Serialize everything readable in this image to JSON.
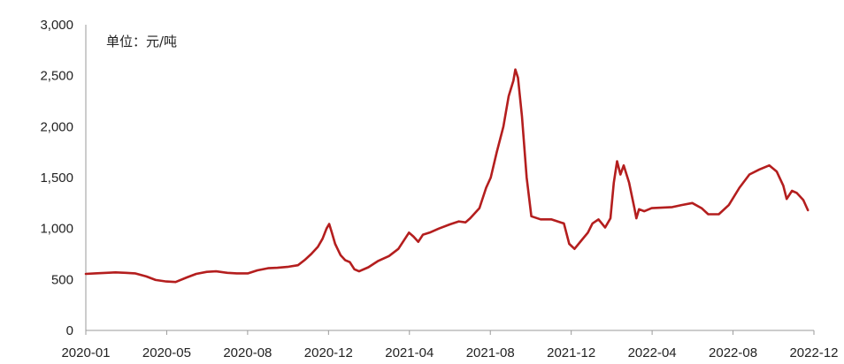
{
  "chart_data": {
    "type": "line",
    "title": "",
    "unit_label": "单位：元/吨",
    "xlabel": "",
    "ylabel": "",
    "ylim": [
      0,
      3000
    ],
    "y_ticks": [
      0,
      500,
      1000,
      1500,
      2000,
      2500,
      3000
    ],
    "y_tick_labels": [
      "0",
      "500",
      "1,000",
      "1,500",
      "2,000",
      "2,500",
      "3,000"
    ],
    "x_range": [
      "2020-01-01",
      "2022-12-31"
    ],
    "x_tick_labels": [
      "2020-01",
      "2020-05",
      "2020-08",
      "2020-12",
      "2021-04",
      "2021-08",
      "2021-12",
      "2022-04",
      "2022-08",
      "2022-12"
    ],
    "grid": false,
    "legend": "none",
    "colors": {
      "series": "#b41e1e",
      "axis": "#9a9a9a",
      "text": "#222222"
    },
    "series": [
      {
        "color": "#b41e1e",
        "points": [
          [
            "2020-01-01",
            555
          ],
          [
            "2020-01-15",
            560
          ],
          [
            "2020-02-01",
            565
          ],
          [
            "2020-02-15",
            570
          ],
          [
            "2020-03-01",
            565
          ],
          [
            "2020-03-15",
            560
          ],
          [
            "2020-04-01",
            530
          ],
          [
            "2020-04-15",
            495
          ],
          [
            "2020-05-01",
            480
          ],
          [
            "2020-05-15",
            475
          ],
          [
            "2020-06-01",
            520
          ],
          [
            "2020-06-15",
            555
          ],
          [
            "2020-07-01",
            575
          ],
          [
            "2020-07-15",
            580
          ],
          [
            "2020-08-01",
            565
          ],
          [
            "2020-08-15",
            560
          ],
          [
            "2020-09-01",
            560
          ],
          [
            "2020-09-15",
            590
          ],
          [
            "2020-10-01",
            610
          ],
          [
            "2020-10-15",
            615
          ],
          [
            "2020-11-01",
            625
          ],
          [
            "2020-11-15",
            640
          ],
          [
            "2020-11-25",
            690
          ],
          [
            "2020-12-05",
            750
          ],
          [
            "2020-12-15",
            820
          ],
          [
            "2020-12-22",
            900
          ],
          [
            "2020-12-28",
            1000
          ],
          [
            "2021-01-01",
            1045
          ],
          [
            "2021-01-05",
            960
          ],
          [
            "2021-01-10",
            850
          ],
          [
            "2021-01-18",
            740
          ],
          [
            "2021-01-25",
            690
          ],
          [
            "2021-02-01",
            670
          ],
          [
            "2021-02-08",
            600
          ],
          [
            "2021-02-15",
            580
          ],
          [
            "2021-03-01",
            620
          ],
          [
            "2021-03-15",
            680
          ],
          [
            "2021-04-01",
            730
          ],
          [
            "2021-04-15",
            800
          ],
          [
            "2021-04-25",
            900
          ],
          [
            "2021-05-01",
            960
          ],
          [
            "2021-05-08",
            920
          ],
          [
            "2021-05-15",
            870
          ],
          [
            "2021-05-22",
            940
          ],
          [
            "2021-06-01",
            960
          ],
          [
            "2021-06-15",
            1000
          ],
          [
            "2021-07-01",
            1040
          ],
          [
            "2021-07-15",
            1070
          ],
          [
            "2021-07-25",
            1060
          ],
          [
            "2021-08-01",
            1100
          ],
          [
            "2021-08-15",
            1200
          ],
          [
            "2021-08-25",
            1400
          ],
          [
            "2021-09-01",
            1500
          ],
          [
            "2021-09-10",
            1750
          ],
          [
            "2021-09-20",
            2000
          ],
          [
            "2021-09-28",
            2300
          ],
          [
            "2021-10-05",
            2450
          ],
          [
            "2021-10-08",
            2560
          ],
          [
            "2021-10-12",
            2480
          ],
          [
            "2021-10-18",
            2100
          ],
          [
            "2021-10-25",
            1500
          ],
          [
            "2021-11-01",
            1120
          ],
          [
            "2021-11-15",
            1090
          ],
          [
            "2021-12-01",
            1090
          ],
          [
            "2021-12-20",
            1050
          ],
          [
            "2021-12-28",
            850
          ],
          [
            "2022-01-05",
            800
          ],
          [
            "2022-01-15",
            880
          ],
          [
            "2022-01-25",
            960
          ],
          [
            "2022-02-01",
            1050
          ],
          [
            "2022-02-10",
            1090
          ],
          [
            "2022-02-20",
            1010
          ],
          [
            "2022-02-28",
            1100
          ],
          [
            "2022-03-05",
            1450
          ],
          [
            "2022-03-10",
            1660
          ],
          [
            "2022-03-15",
            1530
          ],
          [
            "2022-03-20",
            1620
          ],
          [
            "2022-03-28",
            1450
          ],
          [
            "2022-04-05",
            1200
          ],
          [
            "2022-04-08",
            1100
          ],
          [
            "2022-04-12",
            1190
          ],
          [
            "2022-04-20",
            1170
          ],
          [
            "2022-05-01",
            1200
          ],
          [
            "2022-06-01",
            1210
          ],
          [
            "2022-06-15",
            1230
          ],
          [
            "2022-07-01",
            1250
          ],
          [
            "2022-07-15",
            1200
          ],
          [
            "2022-07-25",
            1140
          ],
          [
            "2022-08-10",
            1140
          ],
          [
            "2022-08-25",
            1230
          ],
          [
            "2022-09-10",
            1400
          ],
          [
            "2022-09-25",
            1530
          ],
          [
            "2022-10-10",
            1580
          ],
          [
            "2022-10-25",
            1620
          ],
          [
            "2022-11-05",
            1560
          ],
          [
            "2022-11-15",
            1420
          ],
          [
            "2022-11-20",
            1290
          ],
          [
            "2022-11-28",
            1370
          ],
          [
            "2022-12-05",
            1350
          ],
          [
            "2022-12-15",
            1280
          ],
          [
            "2022-12-22",
            1180
          ]
        ]
      }
    ]
  }
}
